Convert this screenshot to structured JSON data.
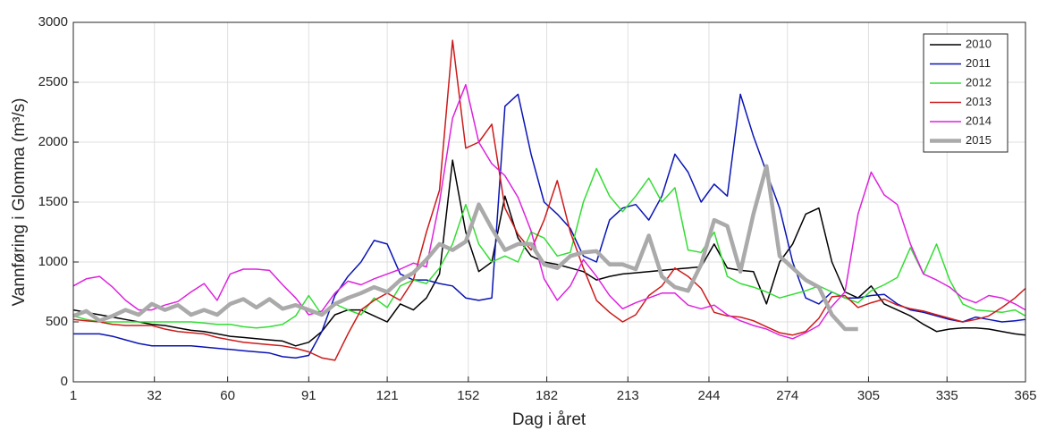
{
  "chart_data": {
    "type": "line",
    "x_label": "Dag i året",
    "y_label": "Vannføring i Glomma (m³/s)",
    "xlim": [
      1,
      365
    ],
    "ylim": [
      0,
      3000
    ],
    "xticks": [
      1,
      32,
      60,
      91,
      121,
      152,
      182,
      213,
      244,
      274,
      305,
      335,
      365
    ],
    "yticks": [
      0,
      500,
      1000,
      1500,
      2000,
      2500,
      3000
    ],
    "grid": true,
    "legend": "upper right",
    "x": [
      1,
      6,
      11,
      16,
      21,
      26,
      31,
      36,
      41,
      46,
      51,
      56,
      61,
      66,
      71,
      76,
      81,
      86,
      91,
      96,
      101,
      106,
      111,
      116,
      121,
      126,
      131,
      136,
      141,
      146,
      151,
      156,
      161,
      166,
      171,
      176,
      181,
      186,
      191,
      196,
      201,
      206,
      211,
      216,
      221,
      226,
      231,
      236,
      241,
      246,
      251,
      256,
      261,
      266,
      271,
      276,
      281,
      286,
      291,
      296,
      301,
      306,
      311,
      316,
      321,
      326,
      331,
      336,
      341,
      346,
      351,
      356,
      361,
      365
    ],
    "series": [
      {
        "name": "2010",
        "color": "#000000",
        "values": [
          600,
          580,
          560,
          540,
          520,
          500,
          480,
          470,
          450,
          430,
          420,
          400,
          380,
          370,
          360,
          350,
          340,
          300,
          330,
          420,
          560,
          600,
          600,
          550,
          500,
          650,
          600,
          700,
          900,
          1850,
          1250,
          920,
          1000,
          1550,
          1200,
          1050,
          1000,
          980,
          950,
          920,
          850,
          880,
          900,
          910,
          920,
          930,
          940,
          950,
          960,
          1150,
          950,
          930,
          920,
          650,
          1000,
          1150,
          1400,
          1450,
          1000,
          750,
          700,
          800,
          650,
          600,
          550,
          480,
          420,
          440,
          450,
          450,
          440,
          420,
          400,
          390
        ]
      },
      {
        "name": "2011",
        "color": "#0a14b4",
        "values": [
          400,
          400,
          400,
          380,
          350,
          320,
          300,
          300,
          300,
          300,
          290,
          280,
          270,
          260,
          250,
          240,
          210,
          200,
          220,
          420,
          720,
          880,
          1000,
          1180,
          1150,
          900,
          850,
          850,
          820,
          800,
          700,
          680,
          700,
          2300,
          2400,
          1900,
          1500,
          1400,
          1280,
          1050,
          1000,
          1350,
          1450,
          1480,
          1350,
          1550,
          1900,
          1750,
          1500,
          1650,
          1550,
          2400,
          2050,
          1750,
          1450,
          1000,
          700,
          650,
          750,
          700,
          700,
          720,
          730,
          650,
          600,
          580,
          550,
          520,
          500,
          540,
          520,
          500,
          510,
          520
        ]
      },
      {
        "name": "2012",
        "color": "#33dd33",
        "values": [
          550,
          520,
          500,
          500,
          500,
          500,
          500,
          500,
          500,
          500,
          490,
          480,
          480,
          460,
          450,
          460,
          480,
          550,
          720,
          560,
          650,
          600,
          560,
          700,
          620,
          800,
          850,
          820,
          950,
          1150,
          1480,
          1150,
          1000,
          1050,
          1000,
          1250,
          1200,
          1050,
          1080,
          1500,
          1780,
          1550,
          1420,
          1550,
          1700,
          1500,
          1620,
          1100,
          1080,
          1250,
          880,
          820,
          790,
          750,
          700,
          730,
          760,
          800,
          750,
          700,
          660,
          760,
          810,
          870,
          1120,
          900,
          1150,
          850,
          650,
          600,
          590,
          580,
          600,
          550
        ]
      },
      {
        "name": "2013",
        "color": "#cc1a1a",
        "values": [
          520,
          510,
          500,
          480,
          470,
          470,
          470,
          440,
          420,
          410,
          400,
          370,
          350,
          330,
          320,
          310,
          300,
          280,
          250,
          200,
          180,
          400,
          600,
          680,
          740,
          680,
          850,
          1250,
          1600,
          2850,
          1950,
          2000,
          2150,
          1450,
          1230,
          1100,
          1350,
          1680,
          1250,
          950,
          680,
          580,
          500,
          560,
          720,
          800,
          950,
          880,
          780,
          580,
          550,
          540,
          510,
          460,
          410,
          390,
          420,
          530,
          710,
          720,
          620,
          660,
          690,
          640,
          610,
          590,
          560,
          530,
          500,
          520,
          550,
          620,
          700,
          780
        ]
      },
      {
        "name": "2014",
        "color": "#dd22dd",
        "values": [
          800,
          860,
          880,
          790,
          680,
          600,
          600,
          640,
          670,
          750,
          820,
          680,
          900,
          940,
          940,
          930,
          810,
          700,
          560,
          590,
          740,
          840,
          810,
          860,
          900,
          940,
          990,
          960,
          1500,
          2200,
          2480,
          2000,
          1820,
          1720,
          1540,
          1260,
          860,
          680,
          800,
          1020,
          880,
          720,
          610,
          660,
          700,
          740,
          740,
          640,
          610,
          640,
          560,
          510,
          470,
          440,
          390,
          360,
          410,
          470,
          630,
          750,
          1400,
          1750,
          1560,
          1480,
          1150,
          900,
          850,
          790,
          700,
          660,
          720,
          700,
          650,
          600
        ]
      },
      {
        "name": "2015",
        "color": "#aaaaaa",
        "values": [
          550,
          590,
          510,
          550,
          600,
          560,
          650,
          600,
          640,
          560,
          600,
          560,
          650,
          690,
          620,
          690,
          610,
          640,
          600,
          560,
          650,
          700,
          740,
          790,
          750,
          850,
          910,
          1020,
          1150,
          1100,
          1170,
          1480,
          1280,
          1100,
          1150,
          1150,
          980,
          950,
          1050,
          1080,
          1090,
          980,
          980,
          940,
          1220,
          880,
          790,
          760,
          980,
          1350,
          1300,
          920,
          1400,
          1800,
          1050,
          950,
          850,
          790,
          560,
          440,
          440,
          null,
          null,
          null,
          null,
          null,
          null,
          null,
          null,
          null,
          null,
          null,
          null,
          null
        ]
      }
    ]
  }
}
